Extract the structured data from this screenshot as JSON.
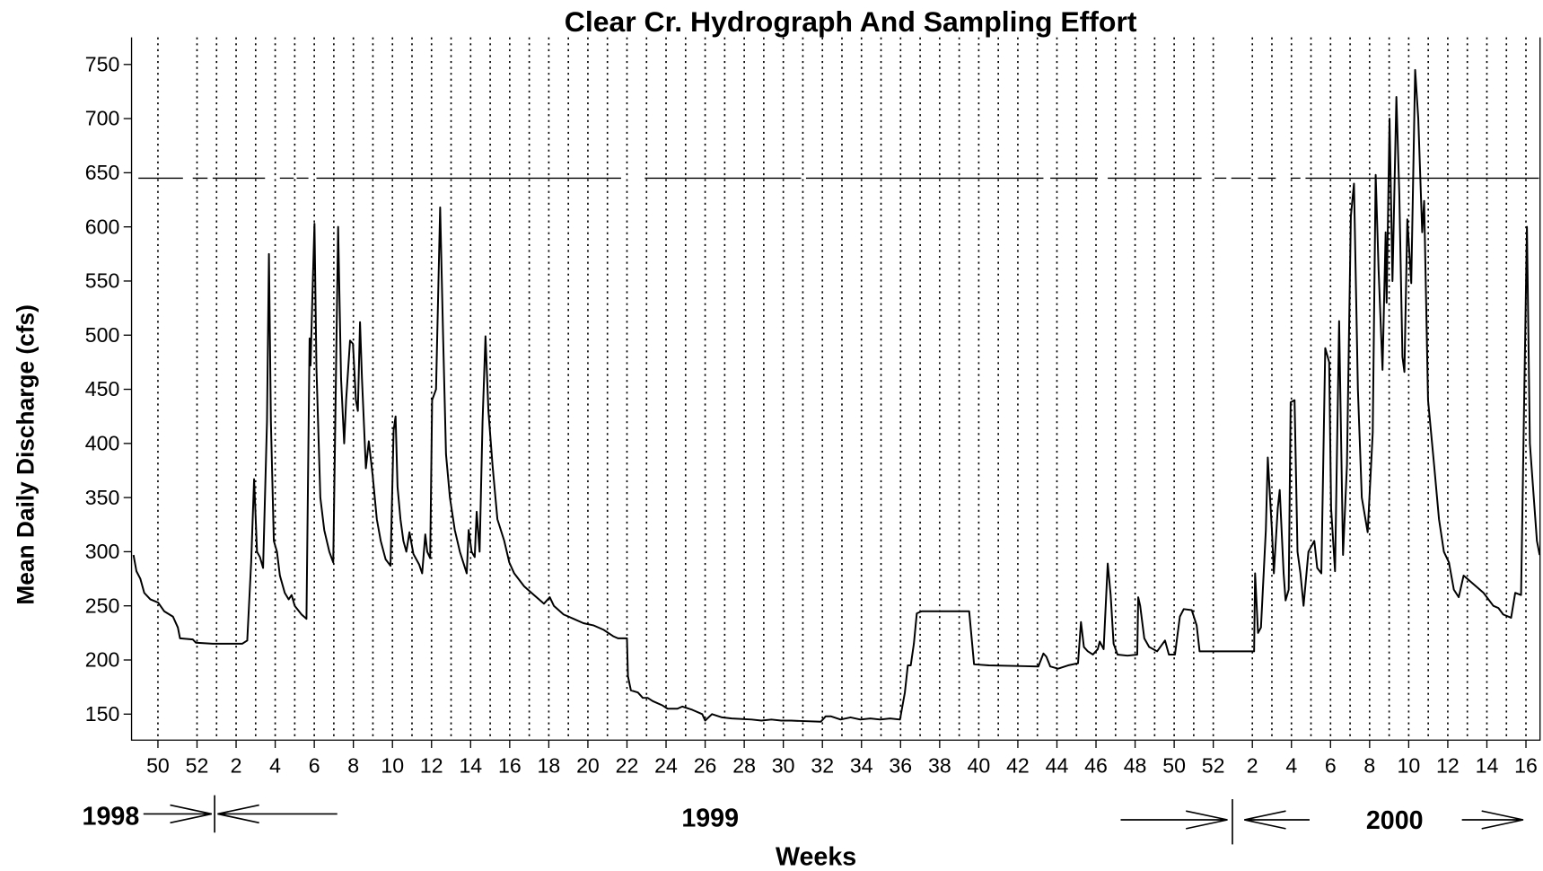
{
  "chart_data": {
    "type": "line",
    "title": "Clear Cr. Hydrograph And Sampling Effort",
    "x_label": "Weeks",
    "y_label": "Mean Daily Discharge (cfs)",
    "annotations": [
      "1998",
      "1999",
      "2000"
    ],
    "x": [
      -0.25,
      -0.1,
      0.1,
      0.3,
      0.61,
      1.01,
      1.32,
      1.77,
      2.02,
      2.13,
      2.78,
      2.94,
      3.8,
      5.31,
      5.57,
      5.77,
      5.92,
      6.07,
      6.22,
      6.38,
      6.58,
      6.68,
      6.78,
      6.93,
      7.09,
      7.24,
      7.49,
      7.69,
      7.84,
      8.0,
      8.35,
      8.6,
      8.76,
      8.81,
      8.91,
      9.01,
      9.11,
      9.31,
      9.51,
      9.77,
      9.97,
      10.22,
      10.37,
      10.53,
      10.63,
      10.83,
      10.98,
      11.13,
      11.23,
      11.34,
      11.44,
      11.64,
      11.79,
      11.99,
      12.2,
      12.4,
      12.65,
      12.9,
      13.06,
      13.16,
      13.26,
      13.41,
      13.56,
      13.71,
      13.87,
      14.07,
      14.37,
      14.52,
      14.68,
      14.78,
      14.93,
      15.03,
      15.23,
      15.44,
      15.59,
      15.74,
      15.94,
      16.19,
      16.45,
      16.8,
      16.9,
      17.05,
      17.21,
      17.31,
      17.46,
      17.61,
      17.76,
      17.91,
      18.12,
      18.37,
      18.72,
      18.98,
      19.23,
      19.74,
      20.24,
      20.75,
      21.05,
      21.26,
      21.76,
      22.27,
      22.77,
      23.28,
      23.79,
      24.29,
      24.54,
      25.0,
      25.05,
      25.2,
      25.56,
      25.81,
      26.06,
      26.32,
      26.82,
      27.08,
      27.58,
      27.83,
      28.34,
      28.85,
      29.0,
      29.35,
      29.86,
      30.36,
      31.38,
      31.88,
      32.39,
      32.89,
      33.4,
      34.92,
      35.17,
      35.43,
      35.93,
      36.44,
      36.94,
      37.45,
      37.96,
      38.46,
      38.97,
      39.07,
      39.22,
      39.37,
      39.52,
      39.68,
      39.83,
      40.08,
      40.49,
      42.51,
      42.76,
      43.52,
      46.05,
      46.31,
      46.46,
      46.66,
      47.06,
      47.57,
      48.08,
      48.23,
      48.38,
      48.58,
      48.84,
      49.09,
      49.19,
      49.39,
      49.6,
      49.75,
      49.9,
      50.1,
      50.61,
      51.11,
      51.16,
      51.26,
      51.47,
      51.72,
      52.13,
      52.53,
      52.73,
      53.04,
      53.29,
      53.49,
      53.9,
      54.15,
      54.3,
      55.67,
      57.09,
      57.14,
      57.29,
      57.44,
      57.69,
      57.79,
      58.0,
      58.1,
      58.3,
      58.4,
      58.6,
      58.7,
      58.86,
      58.96,
      59.16,
      59.31,
      59.46,
      59.62,
      59.87,
      60.17,
      60.32,
      60.53,
      60.73,
      60.93,
      61.03,
      61.23,
      61.44,
      61.64,
      61.84,
      62.04,
      62.2,
      62.4,
      62.6,
      62.9,
      63.16,
      63.31,
      63.46,
      63.66,
      63.82,
      63.87,
      64.02,
      64.17,
      64.37,
      64.52,
      64.68,
      64.78,
      64.93,
      65.13,
      65.33,
      65.49,
      65.69,
      65.79,
      65.99,
      66.3,
      66.55,
      66.8,
      67.06,
      67.31,
      67.56,
      67.81,
      68.32,
      68.83,
      69.33,
      69.59,
      69.84,
      70.24,
      70.45,
      70.75,
      71.05,
      71.2,
      71.56,
      71.7
    ],
    "series": [
      {
        "color": "#000000",
        "values": [
          297,
          282,
          275,
          262,
          256,
          253,
          245,
          240,
          230,
          220,
          219,
          216,
          215,
          215,
          218,
          290,
          367,
          300,
          295,
          285,
          420,
          575,
          420,
          310,
          300,
          278,
          262,
          256,
          260,
          250,
          242,
          238,
          497,
          472,
          540,
          603,
          470,
          350,
          320,
          300,
          290,
          600,
          460,
          400,
          440,
          495,
          492,
          440,
          430,
          512,
          460,
          377,
          402,
          370,
          330,
          310,
          293,
          287,
          412,
          425,
          360,
          330,
          310,
          300,
          318,
          298,
          288,
          280,
          316,
          300,
          294,
          440,
          450,
          618,
          500,
          390,
          350,
          320,
          300,
          280,
          320,
          300,
          295,
          337,
          300,
          420,
          499,
          430,
          380,
          330,
          310,
          290,
          280,
          268,
          260,
          252,
          258,
          250,
          242,
          238,
          234,
          232,
          228,
          222,
          220,
          220,
          185,
          172,
          170,
          165,
          165,
          162,
          158,
          155,
          155,
          157,
          154,
          150,
          144,
          150,
          147,
          146,
          145,
          144,
          145,
          144,
          144,
          143,
          148,
          148,
          145,
          147,
          145,
          146,
          145,
          146,
          145,
          155,
          170,
          195,
          195,
          215,
          243,
          245,
          245,
          245,
          196,
          195,
          194,
          206,
          203,
          194,
          192,
          195,
          197,
          235,
          212,
          208,
          205,
          210,
          217,
          210,
          289,
          260,
          215,
          205,
          204,
          205,
          258,
          250,
          220,
          212,
          208,
          218,
          205,
          205,
          240,
          247,
          246,
          232,
          208,
          208,
          208,
          280,
          225,
          230,
          320,
          387,
          320,
          280,
          340,
          357,
          280,
          255,
          265,
          438,
          440,
          300,
          280,
          250,
          300,
          310,
          285,
          280,
          488,
          475,
          340,
          282,
          513,
          297,
          380,
          610,
          640,
          450,
          350,
          318,
          410,
          648,
          560,
          468,
          595,
          530,
          700,
          550,
          720,
          630,
          480,
          466,
          607,
          548,
          745,
          700,
          595,
          624,
          440,
          380,
          330,
          300,
          290,
          265,
          258,
          278,
          270,
          262,
          250,
          248,
          242,
          239,
          262,
          260,
          600,
          400,
          310,
          297
        ]
      }
    ],
    "sampling_effort": {
      "y": 645,
      "segments": [
        [
          0.0,
          2.28
        ],
        [
          2.78,
          3.54
        ],
        [
          3.8,
          6.48
        ],
        [
          7.24,
          7.95
        ],
        [
          8.1,
          8.7
        ],
        [
          9.11,
          24.7
        ],
        [
          25.91,
          33.91
        ],
        [
          34.16,
          46.31
        ],
        [
          46.66,
          49.09
        ],
        [
          49.6,
          54.4
        ],
        [
          55.06,
          55.67
        ],
        [
          55.92,
          56.93
        ],
        [
          57.29,
          58.2
        ],
        [
          58.96,
          59.46
        ],
        [
          59.72,
          71.66
        ]
      ]
    },
    "sample_weeks": [
      1,
      3,
      4,
      5,
      6,
      7,
      8,
      9,
      10,
      11,
      12,
      13,
      14,
      15,
      16,
      17,
      18,
      19,
      20,
      21,
      22,
      23,
      24,
      25,
      26,
      27,
      28,
      29,
      30,
      31,
      32,
      33,
      34,
      35,
      36,
      37,
      38,
      39,
      40,
      41,
      42,
      43,
      44,
      45,
      46,
      47,
      48,
      49,
      50,
      51,
      52,
      53,
      54,
      55,
      57,
      58,
      59,
      60,
      61,
      62,
      63,
      64,
      65,
      66,
      67,
      68,
      69,
      70,
      71
    ],
    "xlim": [
      -0.35,
      71.72
    ],
    "ylim": [
      126,
      775
    ],
    "xticks": [
      {
        "value": 1,
        "label": "50"
      },
      {
        "value": 3,
        "label": "52"
      },
      {
        "value": 5,
        "label": "2"
      },
      {
        "value": 7,
        "label": "4"
      },
      {
        "value": 9,
        "label": "6"
      },
      {
        "value": 11,
        "label": "8"
      },
      {
        "value": 13,
        "label": "10"
      },
      {
        "value": 15,
        "label": "12"
      },
      {
        "value": 17,
        "label": "14"
      },
      {
        "value": 19,
        "label": "16"
      },
      {
        "value": 21,
        "label": "18"
      },
      {
        "value": 23,
        "label": "20"
      },
      {
        "value": 25,
        "label": "22"
      },
      {
        "value": 27,
        "label": "24"
      },
      {
        "value": 29,
        "label": "26"
      },
      {
        "value": 31,
        "label": "28"
      },
      {
        "value": 33,
        "label": "30"
      },
      {
        "value": 35,
        "label": "32"
      },
      {
        "value": 37,
        "label": "34"
      },
      {
        "value": 39,
        "label": "36"
      },
      {
        "value": 41,
        "label": "38"
      },
      {
        "value": 43,
        "label": "40"
      },
      {
        "value": 45,
        "label": "42"
      },
      {
        "value": 47,
        "label": "44"
      },
      {
        "value": 49,
        "label": "46"
      },
      {
        "value": 51,
        "label": "48"
      },
      {
        "value": 53,
        "label": "50"
      },
      {
        "value": 55,
        "label": "52"
      },
      {
        "value": 57,
        "label": "2"
      },
      {
        "value": 59,
        "label": "4"
      },
      {
        "value": 61,
        "label": "6"
      },
      {
        "value": 63,
        "label": "8"
      },
      {
        "value": 65,
        "label": "10"
      },
      {
        "value": 67,
        "label": "12"
      },
      {
        "value": 69,
        "label": "14"
      },
      {
        "value": 71,
        "label": "16"
      }
    ],
    "yticks": [
      150,
      200,
      250,
      300,
      350,
      400,
      450,
      500,
      550,
      600,
      650,
      700,
      750
    ]
  }
}
